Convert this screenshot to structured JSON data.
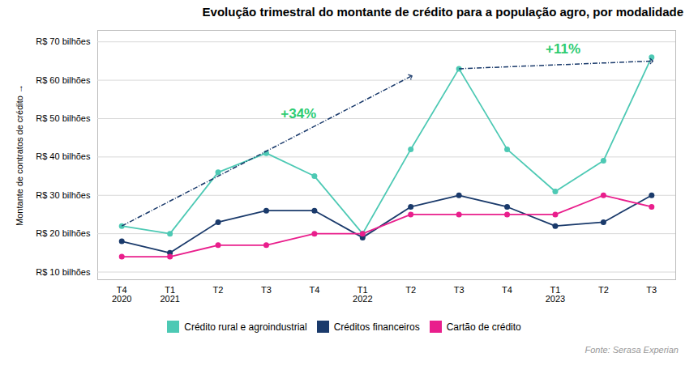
{
  "chart_data": {
    "type": "line",
    "title": "Evolução trimestral do montante de crédito para a população agro, por modalidade",
    "ylabel": "Montante de contratos de crédito",
    "source": "Fonte: Serasa Experian",
    "categories": [
      "T4\n2020",
      "T1\n2021",
      "T2",
      "T3",
      "T4",
      "T1\n2022",
      "T2",
      "T3",
      "T4",
      "T1\n2023",
      "T2",
      "T3"
    ],
    "series": [
      {
        "name": "Crédito rural e agroindustrial",
        "color": "#4dc9b4",
        "marker": "circle",
        "values": [
          22,
          20,
          36,
          41,
          35,
          20,
          42,
          63,
          42,
          31,
          39,
          66
        ]
      },
      {
        "name": "Créditos financeiros",
        "color": "#1a3a6b",
        "marker": "circle",
        "values": [
          18,
          15,
          23,
          26,
          26,
          19,
          27,
          30,
          27,
          22,
          23,
          30
        ]
      },
      {
        "name": "Cartão de crédito",
        "color": "#e91e8c",
        "marker": "circle",
        "values": [
          14,
          14,
          17,
          17,
          20,
          20,
          25,
          25,
          25,
          25,
          30,
          27
        ]
      }
    ],
    "ylim": [
      8,
      73
    ],
    "yticks": [
      {
        "value": 10,
        "label": "R$ 10 bilhões"
      },
      {
        "value": 20,
        "label": "R$ 20 bilhões"
      },
      {
        "value": 30,
        "label": "R$ 30 bilhões"
      },
      {
        "value": 40,
        "label": "R$ 40 bilhões"
      },
      {
        "value": 50,
        "label": "R$ 50 bilhões"
      },
      {
        "value": 60,
        "label": "R$ 60 bilhões"
      },
      {
        "value": 70,
        "label": "R$ 70 bilhões"
      }
    ],
    "grid": true,
    "legend": "bottom",
    "arrows": [
      {
        "x": [
          0,
          6
        ],
        "y": [
          22,
          61
        ],
        "color": "#1a3a6b",
        "line_style": "dashdot"
      },
      {
        "x": [
          7,
          11
        ],
        "y": [
          63,
          65
        ],
        "color": "#1a3a6b",
        "line_style": "dashdot"
      }
    ],
    "annotations": [
      {
        "text": "+34%",
        "x": 3.3,
        "y": 50,
        "color": "#2ecc71"
      },
      {
        "text": "+11%",
        "x": 8.8,
        "y": 67,
        "color": "#2ecc71"
      }
    ]
  }
}
